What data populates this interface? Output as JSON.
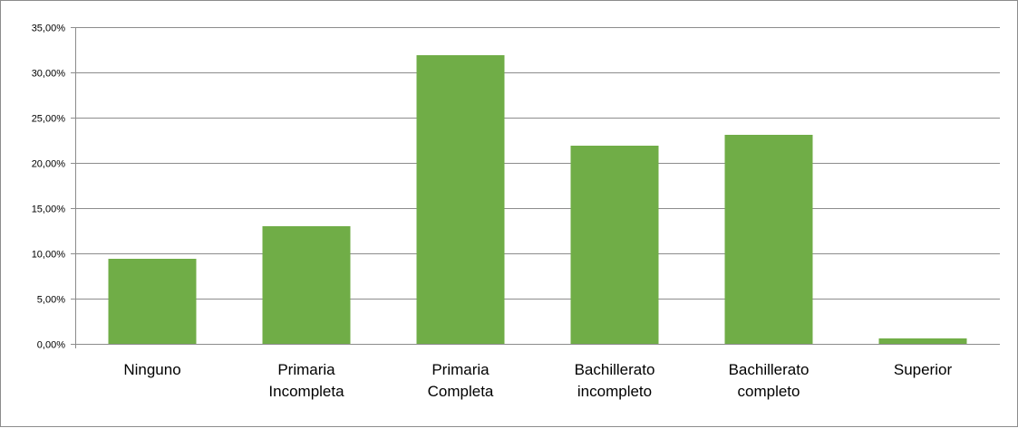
{
  "chart_data": {
    "type": "bar",
    "title": "",
    "xlabel": "",
    "ylabel": "",
    "categories": [
      [
        "Ninguno"
      ],
      [
        "Primaria",
        "Incompleta"
      ],
      [
        "Primaria",
        "Completa"
      ],
      [
        "Bachillerato",
        "incompleto"
      ],
      [
        "Bachillerato",
        "completo"
      ],
      [
        "Superior"
      ]
    ],
    "values": [
      9.4,
      13.0,
      31.9,
      21.9,
      23.1,
      0.6
    ],
    "ylim": [
      0,
      35
    ],
    "yticks": [
      0,
      5,
      10,
      15,
      20,
      25,
      30,
      35
    ],
    "ytick_labels": [
      "0,00%",
      "5,00%",
      "10,00%",
      "15,00%",
      "20,00%",
      "25,00%",
      "30,00%",
      "35,00%"
    ],
    "grid": true,
    "legend": "none",
    "bar_color": "#70ad47",
    "grid_color": "#8c8c8c"
  }
}
